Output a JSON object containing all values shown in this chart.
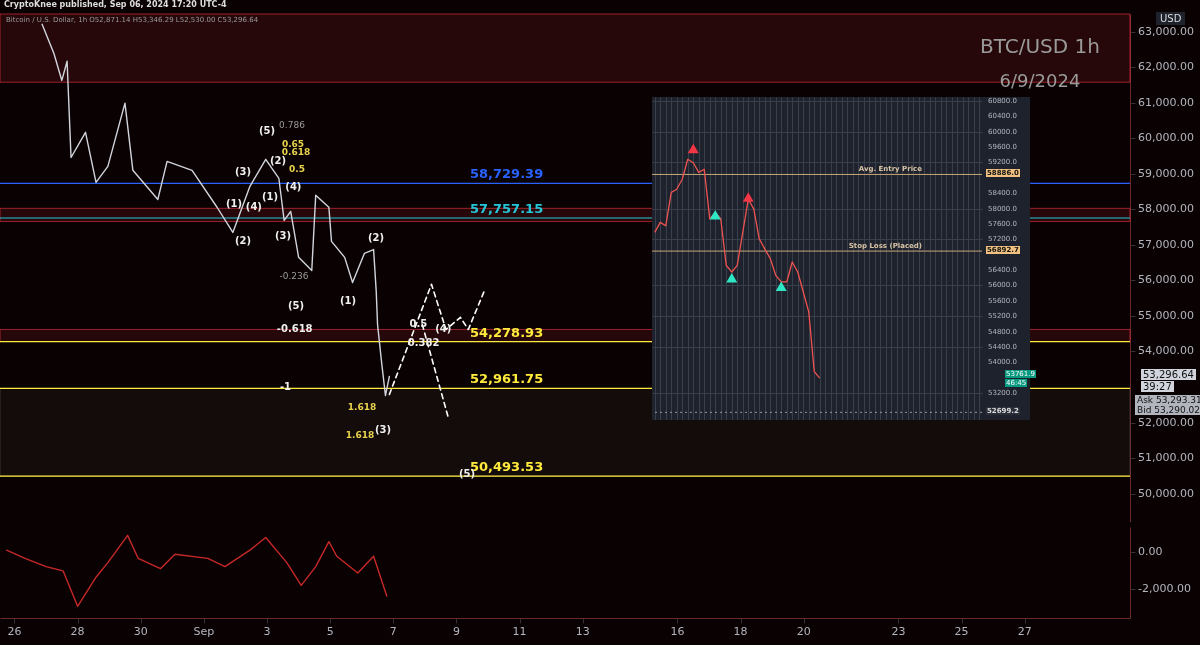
{
  "chart_data": [
    {
      "type": "line",
      "title": "BTC/USD 1h",
      "subtitle": "6/9/2024",
      "ylabel": "USD",
      "tick_labels": "y",
      "annotations": [
        "CryptoKnee published, Sep 06, 2024 17:20 UTC-4",
        "Bitcoin / U.S. Dollar, 1h O52,871.14 H53,346.29 L52,530.00 C53,296.64",
        "53,296.64",
        "39:27",
        "Ask 53,293.31",
        "Bid 53,290.02",
        "(5)",
        "0.786",
        "0.65",
        "0.618",
        "0.5",
        "(2)",
        "(3)",
        "(1)",
        "(1)",
        "(2)",
        "(3)",
        "-0.236",
        "(5)",
        "(2)",
        "(1)",
        "1.618",
        "1.618",
        "(3)",
        {
          "text": "(4)",
          "x": "2024-09-03T20:00",
          "y": 58620
        },
        {
          "text": "(4)",
          "x": "2024-09-02T14:00",
          "y": 58080
        },
        {
          "text": "-0.618",
          "x": "2024-09-03T21:00",
          "y": 54620
        },
        {
          "text": "0.5",
          "x": "2024-09-07T19:00",
          "y": 54760
        },
        {
          "text": "(4)",
          "x": "2024-09-08T14:00",
          "y": 54620
        },
        {
          "text": "0.382",
          "x": "2024-09-07T23:00",
          "y": 54250
        },
        {
          "text": "-1",
          "x": "2024-09-03T14:00",
          "y": 53010
        },
        {
          "text": "(5)",
          "x": "2024-09-09T08:00",
          "y": 50560
        }
      ],
      "xlim": [
        "2024-08-25T13:00",
        "2024-09-30T08:00"
      ],
      "ylim": [
        49200,
        63500
      ],
      "yticks": [
        {
          "value": 50000,
          "label": "50,000.00"
        },
        {
          "value": 51000,
          "label": "51,000.00"
        },
        {
          "value": 52000,
          "label": "52,000.00"
        },
        {
          "value": 54000,
          "label": "54,000.00"
        },
        {
          "value": 55000,
          "label": "55,000.00"
        },
        {
          "value": 56000,
          "label": "56,000.00"
        },
        {
          "value": 57000,
          "label": "57,000.00"
        },
        {
          "value": 58000,
          "label": "58,000.00"
        },
        {
          "value": 59000,
          "label": "59,000.00"
        },
        {
          "value": 60000,
          "label": "60,000.00"
        },
        {
          "value": 61000,
          "label": "61,000.00"
        },
        {
          "value": 62000,
          "label": "62,000.00"
        },
        {
          "value": 63000,
          "label": "63,000.00"
        }
      ],
      "bands": [
        {
          "axis": "y",
          "from": 61580,
          "to": 63500,
          "color": "#f23645"
        },
        {
          "axis": "y",
          "from": 57660,
          "to": 58030,
          "color": "#f23645"
        },
        {
          "axis": "y",
          "from": 54280,
          "to": 54620,
          "color": "#f23645"
        },
        {
          "axis": "y",
          "from": 50490,
          "to": 52960,
          "color": "#5d4a4c"
        }
      ],
      "ref_lines": [
        {
          "axis": "y",
          "value": 58729.39,
          "label": "58,729.39",
          "color": "#2962ff"
        },
        {
          "axis": "y",
          "value": 57757.15,
          "label": "57,757.15",
          "color": "#26c6da"
        },
        {
          "axis": "y",
          "value": 54278.93,
          "label": "54,278.93",
          "color": "#ffeb3b"
        },
        {
          "axis": "y",
          "value": 52961.75,
          "label": "52,961.75",
          "color": "#ffeb3b"
        },
        {
          "axis": "y",
          "value": 50493.53,
          "label": "50,493.53",
          "color": "#ffeb3b"
        }
      ],
      "series": [
        {
          "color": "#d1d4dc",
          "x": [
            "2024-08-26T21:00",
            "2024-08-27T06:00",
            "2024-08-27T12:00",
            "2024-08-27T16:00",
            "2024-08-27T19:00",
            "2024-08-28T06:00",
            "2024-08-28T14:00",
            "2024-08-28T23:00",
            "2024-08-29T12:00",
            "2024-08-29T18:00",
            "2024-08-30T13:00",
            "2024-08-30T20:00",
            "2024-08-31T15:00",
            "2024-09-01T10:00",
            "2024-09-01T22:00",
            "2024-09-02T11:00",
            "2024-09-02T23:00",
            "2024-09-03T09:00",
            "2024-09-03T13:00",
            "2024-09-03T18:00",
            "2024-09-04T00:00",
            "2024-09-04T10:00",
            "2024-09-04T13:00",
            "2024-09-04T23:00",
            "2024-09-05T01:00",
            "2024-09-05T11:00",
            "2024-09-05T17:00",
            "2024-09-06T02:00",
            "2024-09-06T09:00",
            "2024-09-06T11:00",
            "2024-09-06T12:00",
            "2024-09-06T15:00",
            "2024-09-06T18:00",
            "2024-09-06T21:00"
          ],
          "values": [
            63210,
            62390,
            61630,
            62170,
            59460,
            60170,
            58760,
            59210,
            60990,
            59100,
            58280,
            59350,
            59100,
            58060,
            57350,
            58650,
            59410,
            58870,
            57690,
            57940,
            56650,
            56280,
            58400,
            58060,
            57100,
            56650,
            55940,
            56760,
            56870,
            55690,
            54760,
            53720,
            52760,
            53300
          ]
        },
        {
          "color": "#ffffff",
          "line_style": "dashed",
          "x": [
            "2024-09-06T21:00",
            "2024-09-08T05:00",
            "2024-09-08T16:00",
            "2024-09-09T03:00",
            "2024-09-09T09:00",
            "2024-09-09T21:00"
          ],
          "values": [
            52790,
            55890,
            54620,
            54960,
            54620,
            55690
          ]
        },
        {
          "color": "#ffffff",
          "line_style": "dashed",
          "x": [
            "2024-09-07T22:00",
            "2024-09-08T18:00"
          ],
          "values": [
            54760,
            52110
          ]
        }
      ]
    },
    {
      "type": "line",
      "tick_labels": "y",
      "grid": true,
      "annotations": [
        "53761.9",
        "46:45",
        "58886.0",
        "56892.7",
        "52699.2"
      ],
      "categories": [
        null,
        null,
        null,
        null,
        null,
        null,
        null,
        null,
        null,
        null,
        null,
        null,
        null,
        null,
        null,
        null,
        null,
        null,
        null,
        null,
        null,
        null,
        null,
        null,
        null,
        null,
        null,
        null,
        null,
        null,
        null,
        null,
        null,
        null,
        null,
        null,
        null,
        null,
        null,
        null,
        null,
        null,
        null,
        null,
        null,
        null,
        null,
        null,
        null,
        null,
        null,
        null,
        null,
        null,
        null,
        null,
        null,
        null,
        null,
        null
      ],
      "ylim": [
        52500,
        60900
      ],
      "yticks": [
        {
          "value": 60800,
          "label": "60800.0"
        },
        {
          "value": 60400,
          "label": "60400.0"
        },
        {
          "value": 60000,
          "label": "60000.0"
        },
        {
          "value": 59600,
          "label": "59600.0"
        },
        {
          "value": 59200,
          "label": "59200.0"
        },
        {
          "value": 58400,
          "label": "58400.0"
        },
        {
          "value": 58000,
          "label": "58000.0"
        },
        {
          "value": 57600,
          "label": "57600.0"
        },
        {
          "value": 57200,
          "label": "57200.0"
        },
        {
          "value": 56400,
          "label": "56400.0"
        },
        {
          "value": 56000,
          "label": "56000.0"
        },
        {
          "value": 55600,
          "label": "55600.0"
        },
        {
          "value": 55200,
          "label": "55200.0"
        },
        {
          "value": 54800,
          "label": "54800.0"
        },
        {
          "value": 54400,
          "label": "54400.0"
        },
        {
          "value": 54000,
          "label": "54000.0"
        },
        {
          "value": 53200,
          "label": "53200.0"
        }
      ],
      "ref_lines": [
        {
          "axis": "y",
          "value": 58886.0,
          "label": "Avg. Entry Price",
          "color": "#c8a77a"
        },
        {
          "axis": "y",
          "value": 56892.7,
          "label": "Stop Loss (Placed)",
          "color": "#c8a77a"
        },
        {
          "axis": "y",
          "value": 52699.2,
          "label": null,
          "color": "#9598a1",
          "line_style": "dotted"
        }
      ],
      "series": [
        {
          "color": "#ef5350",
          "values": [
            57380,
            57640,
            57550,
            58420,
            58500,
            58760,
            59280,
            59190,
            58940,
            59020,
            57730,
            57900,
            57730,
            56520,
            56350,
            56520,
            57380,
            58240,
            57990,
            57210,
            56950,
            56700,
            56260,
            56090,
            56090,
            56610,
            56350,
            55830,
            55310,
            53760,
            53590,
            null,
            null,
            null,
            null,
            null,
            null,
            null,
            null,
            null,
            null,
            null,
            null,
            null,
            null,
            null,
            null,
            null,
            null,
            null,
            null,
            null,
            null,
            null,
            null,
            null,
            null,
            null,
            null,
            null
          ]
        },
        {
          "type": "scatter",
          "marker": "triangle",
          "color": "#f23645",
          "values": [
            null,
            null,
            null,
            null,
            null,
            null,
            null,
            59560,
            null,
            null,
            null,
            null,
            null,
            null,
            null,
            null,
            null,
            58300,
            null,
            null,
            null,
            null,
            null,
            null,
            null,
            null,
            null,
            null,
            null,
            null,
            null,
            null,
            null,
            null,
            null,
            null,
            null,
            null,
            null,
            null,
            null,
            null,
            null,
            null,
            null,
            null,
            null,
            null,
            null,
            null,
            null,
            null,
            null,
            null,
            null,
            null,
            null,
            null,
            null,
            null
          ]
        },
        {
          "type": "scatter",
          "marker": "triangle",
          "color": "#2de6c4",
          "values": [
            null,
            null,
            null,
            null,
            null,
            null,
            null,
            null,
            null,
            null,
            null,
            57840,
            null,
            null,
            56200,
            null,
            null,
            null,
            null,
            null,
            null,
            null,
            null,
            55980,
            null,
            null,
            null,
            null,
            null,
            null,
            null,
            null,
            null,
            null,
            null,
            null,
            null,
            null,
            null,
            null,
            null,
            null,
            null,
            null,
            null,
            null,
            null,
            null,
            null,
            null,
            null,
            null,
            null,
            null,
            null,
            null,
            null,
            null,
            null,
            null
          ]
        }
      ]
    },
    {
      "type": "line",
      "xlim": [
        "2024-08-25T13:00",
        "2024-09-30T08:00"
      ],
      "xticks": [
        {
          "value": "2024-08-26",
          "label": "26"
        },
        {
          "value": "2024-08-28",
          "label": "28"
        },
        {
          "value": "2024-08-30",
          "label": "30"
        },
        {
          "value": "2024-09-01",
          "label": "Sep"
        },
        {
          "value": "2024-09-03",
          "label": "3"
        },
        {
          "value": "2024-09-05",
          "label": "5"
        },
        {
          "value": "2024-09-07",
          "label": "7"
        },
        {
          "value": "2024-09-09",
          "label": "9"
        },
        {
          "value": "2024-09-11",
          "label": "11"
        },
        {
          "value": "2024-09-13",
          "label": "13"
        },
        {
          "value": "2024-09-16",
          "label": "16"
        },
        {
          "value": "2024-09-18",
          "label": "18"
        },
        {
          "value": "2024-09-20",
          "label": "20"
        },
        {
          "value": "2024-09-23",
          "label": "23"
        },
        {
          "value": "2024-09-25",
          "label": "25"
        },
        {
          "value": "2024-09-27",
          "label": "27"
        }
      ],
      "ylim": [
        -3560,
        1350
      ],
      "yticks": [
        {
          "value": 0,
          "label": "0.00"
        },
        {
          "value": -2000,
          "label": "-2,000.00"
        }
      ],
      "series": [
        {
          "color": "#c62828",
          "x": [
            "2024-08-25T18:00",
            "2024-08-26T08:00",
            "2024-08-27T00:00",
            "2024-08-27T13:00",
            "2024-08-28T00:00",
            "2024-08-28T14:00",
            "2024-08-28T23:00",
            "2024-08-29T14:00",
            "2024-08-29T22:00",
            "2024-08-30T15:00",
            "2024-08-31T02:00",
            "2024-09-01T03:00",
            "2024-09-01T16:00",
            "2024-09-02T11:00",
            "2024-09-02T23:00",
            "2024-09-03T15:00",
            "2024-09-04T02:00",
            "2024-09-04T13:00",
            "2024-09-04T23:00",
            "2024-09-05T05:00",
            "2024-09-05T21:00",
            "2024-09-06T09:00",
            "2024-09-06T19:00"
          ],
          "values": [
            100,
            -340,
            -790,
            -1020,
            -2930,
            -1360,
            -570,
            900,
            -340,
            -900,
            -120,
            -340,
            -790,
            100,
            780,
            -570,
            -1800,
            -790,
            560,
            -230,
            -1130,
            -230,
            -2370
          ]
        }
      ]
    }
  ]
}
